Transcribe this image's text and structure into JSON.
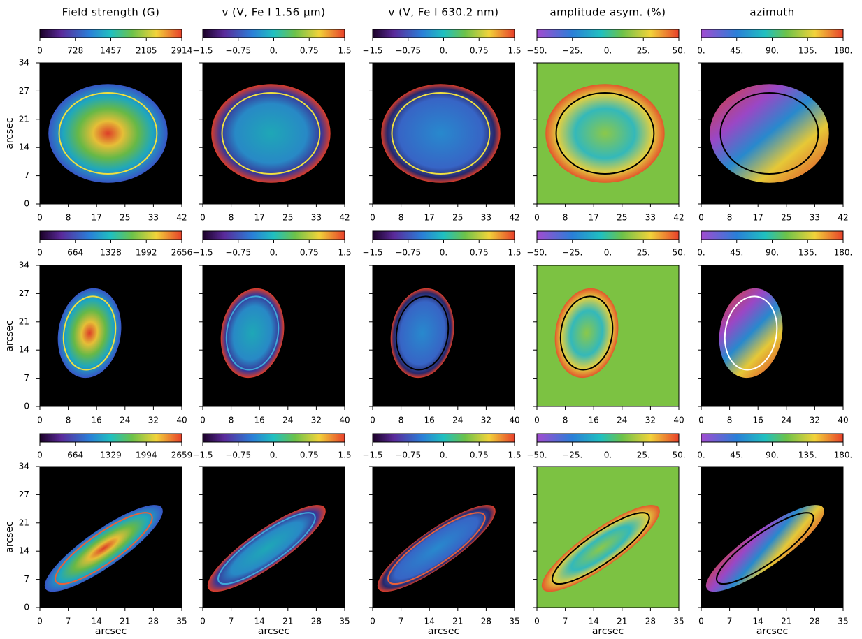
{
  "column_titles": [
    "Field strength (G)",
    "v (V, Fe I 1.56 μm)",
    "v (V, Fe I 630.2 nm)",
    "amplitude asym. (%)",
    "azimuth"
  ],
  "x_axis_label": "arcsec",
  "y_axis_label": "arcsec",
  "rows": [
    {
      "colorbar_ticks": [
        [
          0,
          728,
          1457,
          2185,
          2914
        ],
        [
          "−1.5",
          "−0.75",
          "0.",
          0.75,
          1.5
        ],
        [
          "−1.5",
          "−0.75",
          "0.",
          0.75,
          1.5
        ],
        [
          "−50.",
          "−25.",
          "0.",
          "25.",
          "50."
        ],
        [
          "0.",
          "45.",
          "90.",
          "135.",
          "180."
        ]
      ],
      "x_ticks": [
        0,
        8,
        17,
        25,
        33,
        42
      ],
      "y_ticks": [
        0,
        7,
        14,
        21,
        27,
        34
      ]
    },
    {
      "colorbar_ticks": [
        [
          0,
          664,
          1328,
          1992,
          2656
        ],
        [
          "−1.5",
          "−0.75",
          "0.",
          0.75,
          1.5
        ],
        [
          "−1.5",
          "−0.75",
          "0.",
          0.75,
          1.5
        ],
        [
          "−50.",
          "−25.",
          "0.",
          "25.",
          "50."
        ],
        [
          "0.",
          "45.",
          "90.",
          "135.",
          "180."
        ]
      ],
      "x_ticks": [
        0,
        8,
        16,
        24,
        32,
        40
      ],
      "y_ticks": [
        0,
        7,
        14,
        21,
        27,
        34
      ]
    },
    {
      "colorbar_ticks": [
        [
          0,
          664,
          1329,
          1994,
          2659
        ],
        [
          "−1.5",
          "−0.75",
          "0.",
          0.75,
          1.5
        ],
        [
          "−1.5",
          "−0.75",
          "0.",
          0.75,
          1.5
        ],
        [
          "−50.",
          "−25.",
          "0.",
          "25.",
          "50."
        ],
        [
          "0.",
          "45.",
          "90.",
          "135.",
          "180."
        ]
      ],
      "x_ticks": [
        0,
        7,
        14,
        21,
        28,
        35
      ],
      "y_ticks": [
        0,
        7,
        14,
        21,
        27,
        34
      ]
    }
  ]
}
